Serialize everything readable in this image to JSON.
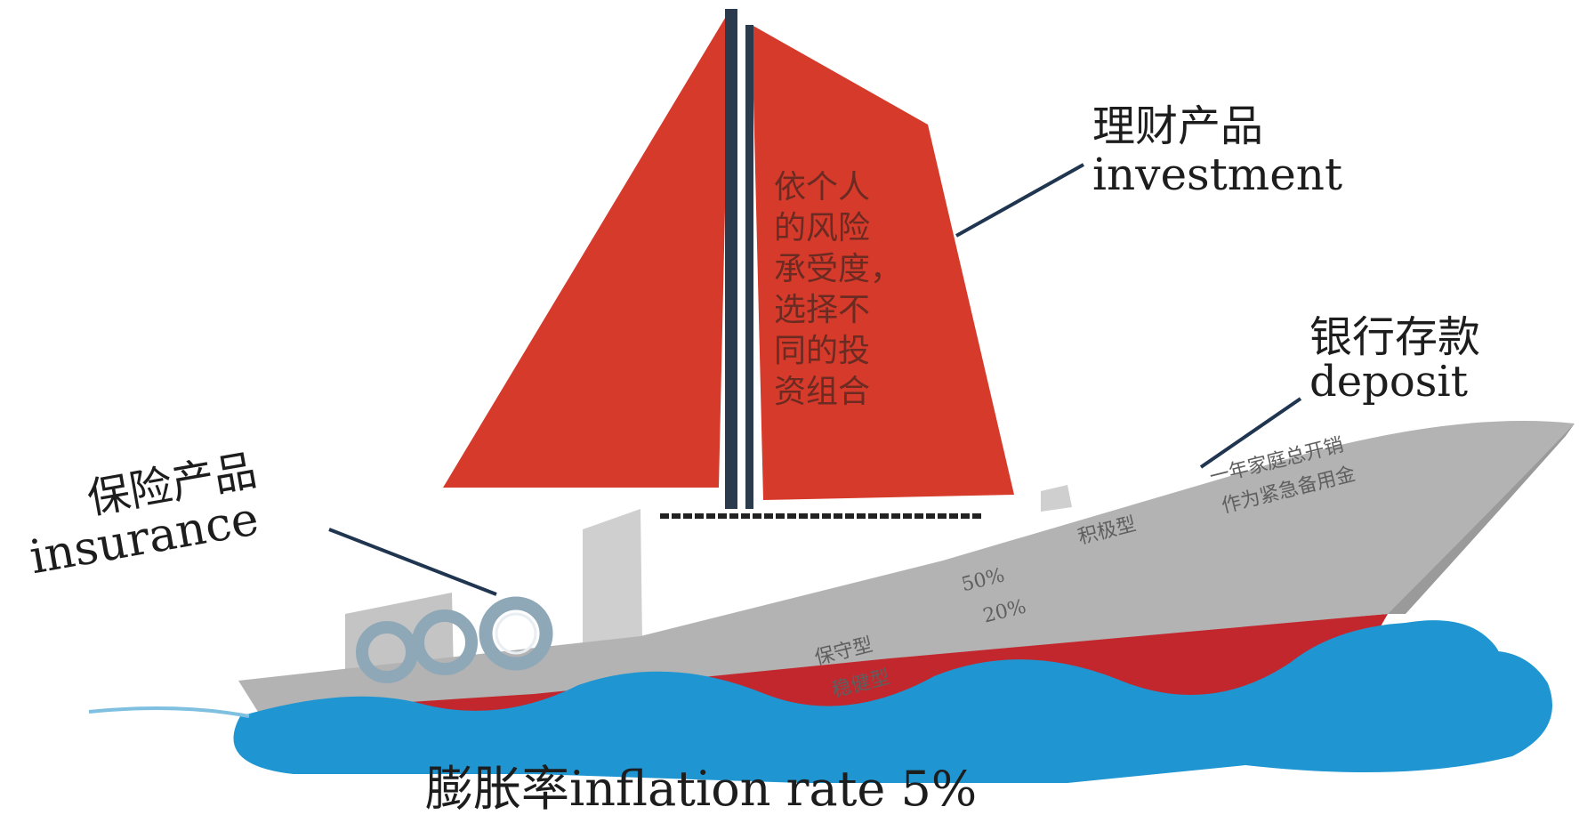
{
  "labels": {
    "investment_cn": "理财产品",
    "investment_en": "investment",
    "deposit_cn": "银行存款",
    "deposit_en": "deposit",
    "insurance_cn": "保险产品",
    "insurance_en": "insurance",
    "inflation": "膨胀率inflation rate  5%"
  },
  "sail_text": [
    "依个人",
    "的风险",
    "承受度，",
    "选择不",
    "同的投",
    "资组合"
  ],
  "hull_text": {
    "conservative": "保守型",
    "steady": "稳健型",
    "aggressive": "积极型",
    "pct_50": "50%",
    "pct_20": "20%",
    "emergency_line1": "一年家庭总开销",
    "emergency_line2": "作为紧急备用金"
  },
  "colors": {
    "sail": "#d63a2a",
    "mast": "#2b3a4c",
    "hull": "#b3b3b3",
    "hull_bottom": "#c1272d",
    "wave": "#1f95d1",
    "leader": "#1f3550"
  }
}
